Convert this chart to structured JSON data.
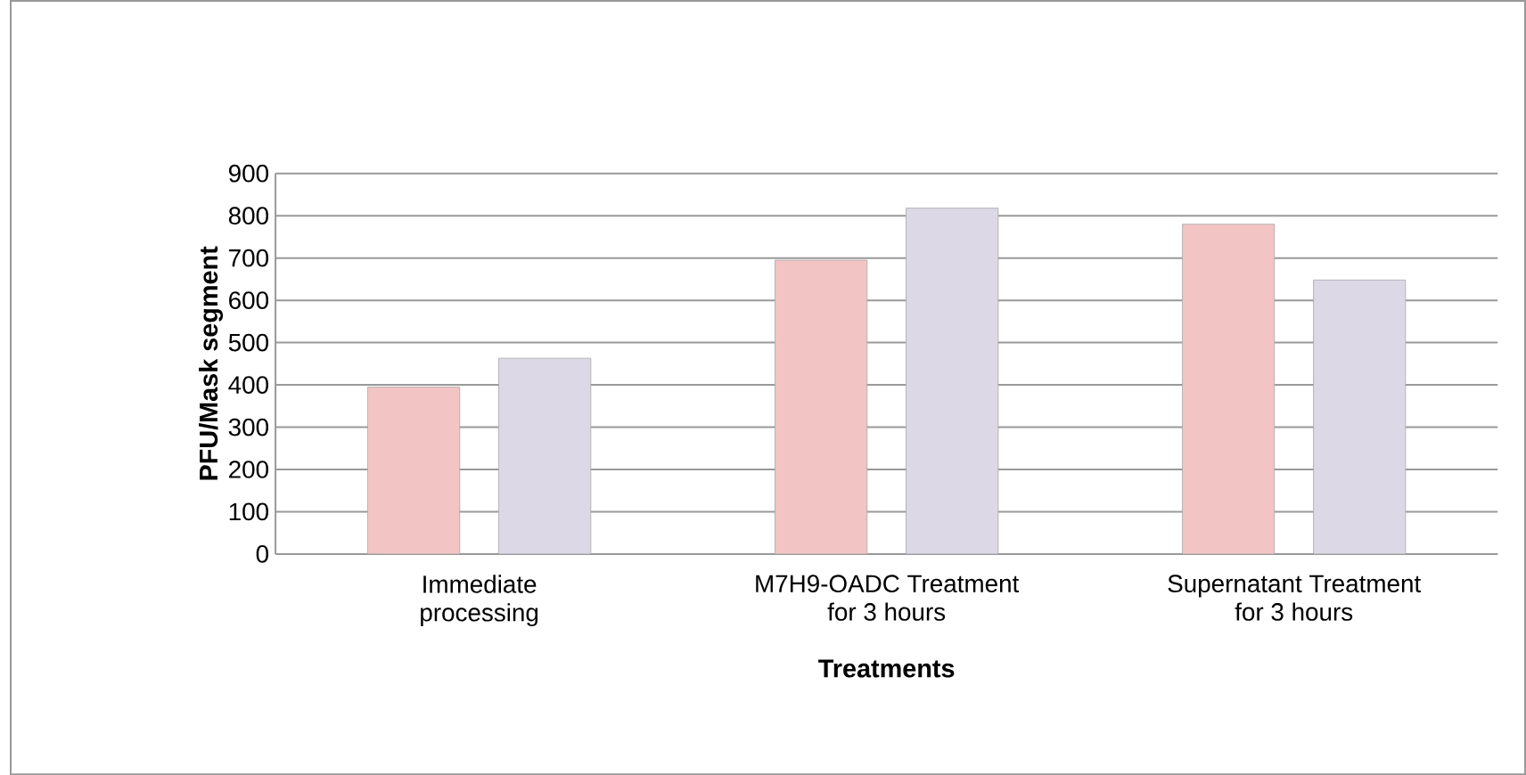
{
  "chart_data": {
    "type": "bar",
    "xlabel": "Treatments",
    "ylabel": "PFU/Mask segment",
    "categories": [
      "Immediate processing",
      "M7H9-OADC Treatment for 3 hours",
      "Supernatant Treatment for 3 hours"
    ],
    "series": [
      {
        "color": "#f2c4c4",
        "values": [
          395,
          695,
          780
        ]
      },
      {
        "color": "#dcd8e6",
        "values": [
          463,
          818,
          648
        ]
      }
    ],
    "ylim": [
      0,
      900
    ],
    "yticks": [
      0,
      100,
      200,
      300,
      400,
      500,
      600,
      700,
      800,
      900
    ],
    "grid": "y"
  }
}
